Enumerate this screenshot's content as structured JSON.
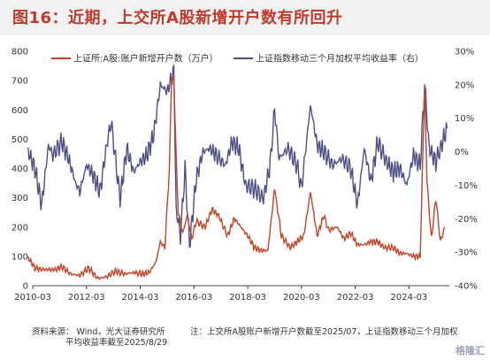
{
  "header": {
    "title": "图16：近期，上交所A股新增开户数有所回升"
  },
  "footer": {
    "source_line1": "资料来源： Wind，光大证券研究所",
    "source_line2": "平均收益率截至2025/8/29",
    "note": "注：上交所A股账户新增开户数截至2025/07，上证指数移动三个月加权"
  },
  "watermark": "格隆汇",
  "colors": {
    "accounts": "#c0452a",
    "index": "#4f4e86",
    "axis": "#333333",
    "title": "#c0392b"
  },
  "chart_data": {
    "type": "line",
    "x_ticks": [
      "2010-03",
      "2012-03",
      "2014-03",
      "2016-03",
      "2018-03",
      "2020-03",
      "2022-03",
      "2024-03"
    ],
    "y_left": {
      "lim": [
        0,
        800
      ],
      "ticks": [
        "0",
        "100",
        "200",
        "300",
        "400",
        "500",
        "600",
        "700",
        "800"
      ]
    },
    "y_right": {
      "lim": [
        -40,
        30
      ],
      "ticks": [
        "-40%",
        "-30%",
        "-20%",
        "-10%",
        "0%",
        "10%",
        "20%",
        "30%"
      ]
    },
    "series": [
      {
        "name": "上证所:A股:账户新增开户数（万户）",
        "axis": "left",
        "points": [
          [
            "2010-01",
            95
          ],
          [
            "2010-04",
            60
          ],
          [
            "2010-08",
            55
          ],
          [
            "2011-01",
            55
          ],
          [
            "2011-04",
            65
          ],
          [
            "2011-08",
            40
          ],
          [
            "2011-12",
            35
          ],
          [
            "2012-04",
            60
          ],
          [
            "2012-08",
            25
          ],
          [
            "2012-12",
            30
          ],
          [
            "2013-04",
            50
          ],
          [
            "2013-08",
            40
          ],
          [
            "2013-12",
            45
          ],
          [
            "2014-04",
            40
          ],
          [
            "2014-07",
            45
          ],
          [
            "2014-10",
            80
          ],
          [
            "2014-12",
            150
          ],
          [
            "2015-02",
            130
          ],
          [
            "2015-04",
            400
          ],
          [
            "2015-05",
            700
          ],
          [
            "2015-06",
            710
          ],
          [
            "2015-07",
            450
          ],
          [
            "2015-08",
            250
          ],
          [
            "2015-10",
            180
          ],
          [
            "2015-12",
            240
          ],
          [
            "2016-02",
            160
          ],
          [
            "2016-04",
            220
          ],
          [
            "2016-08",
            200
          ],
          [
            "2016-11",
            260
          ],
          [
            "2017-02",
            240
          ],
          [
            "2017-06",
            170
          ],
          [
            "2017-09",
            230
          ],
          [
            "2017-12",
            200
          ],
          [
            "2018-03",
            170
          ],
          [
            "2018-06",
            130
          ],
          [
            "2018-09",
            120
          ],
          [
            "2018-12",
            120
          ],
          [
            "2019-03",
            330
          ],
          [
            "2019-04",
            280
          ],
          [
            "2019-06",
            170
          ],
          [
            "2019-10",
            130
          ],
          [
            "2020-01",
            150
          ],
          [
            "2020-04",
            170
          ],
          [
            "2020-07",
            320
          ],
          [
            "2020-10",
            170
          ],
          [
            "2021-01",
            240
          ],
          [
            "2021-03",
            190
          ],
          [
            "2021-07",
            200
          ],
          [
            "2021-10",
            160
          ],
          [
            "2022-01",
            180
          ],
          [
            "2022-04",
            140
          ],
          [
            "2022-07",
            140
          ],
          [
            "2022-10",
            150
          ],
          [
            "2023-01",
            150
          ],
          [
            "2023-04",
            130
          ],
          [
            "2023-08",
            130
          ],
          [
            "2023-11",
            110
          ],
          [
            "2024-02",
            110
          ],
          [
            "2024-05",
            100
          ],
          [
            "2024-08",
            100
          ],
          [
            "2024-10",
            690
          ],
          [
            "2024-11",
            360
          ],
          [
            "2025-01",
            160
          ],
          [
            "2025-03",
            300
          ],
          [
            "2025-05",
            150
          ],
          [
            "2025-07",
            200
          ]
        ]
      },
      {
        "name": "上证指数移动三个月加权平均收益率（右）",
        "axis": "right",
        "points": [
          [
            "2010-01",
            0
          ],
          [
            "2010-04",
            -5
          ],
          [
            "2010-07",
            -16
          ],
          [
            "2010-10",
            2
          ],
          [
            "2010-12",
            -1
          ],
          [
            "2011-04",
            3
          ],
          [
            "2011-07",
            -2
          ],
          [
            "2011-10",
            -9
          ],
          [
            "2011-12",
            -12
          ],
          [
            "2012-03",
            -4
          ],
          [
            "2012-06",
            -7
          ],
          [
            "2012-09",
            -12
          ],
          [
            "2012-12",
            2
          ],
          [
            "2013-02",
            9
          ],
          [
            "2013-06",
            -14
          ],
          [
            "2013-09",
            1
          ],
          [
            "2013-12",
            -6
          ],
          [
            "2014-03",
            -3
          ],
          [
            "2014-06",
            -1
          ],
          [
            "2014-09",
            5
          ],
          [
            "2014-12",
            20
          ],
          [
            "2015-03",
            18
          ],
          [
            "2015-06",
            24
          ],
          [
            "2015-07",
            -17
          ],
          [
            "2015-09",
            -25
          ],
          [
            "2015-11",
            -5
          ],
          [
            "2016-01",
            -28
          ],
          [
            "2016-04",
            -8
          ],
          [
            "2016-07",
            0
          ],
          [
            "2016-10",
            1
          ],
          [
            "2017-01",
            -1
          ],
          [
            "2017-05",
            -4
          ],
          [
            "2017-08",
            3
          ],
          [
            "2017-11",
            1
          ],
          [
            "2018-02",
            -10
          ],
          [
            "2018-06",
            -11
          ],
          [
            "2018-10",
            -14
          ],
          [
            "2019-01",
            -4
          ],
          [
            "2019-03",
            13
          ],
          [
            "2019-05",
            -2
          ],
          [
            "2019-09",
            1
          ],
          [
            "2020-01",
            -4
          ],
          [
            "2020-03",
            -11
          ],
          [
            "2020-07",
            14
          ],
          [
            "2020-10",
            2
          ],
          [
            "2021-01",
            0
          ],
          [
            "2021-05",
            -4
          ],
          [
            "2021-09",
            -2
          ],
          [
            "2022-01",
            -5
          ],
          [
            "2022-04",
            -16
          ],
          [
            "2022-07",
            1
          ],
          [
            "2022-10",
            -9
          ],
          [
            "2023-01",
            3
          ],
          [
            "2023-05",
            -3
          ],
          [
            "2023-08",
            -6
          ],
          [
            "2023-11",
            -5
          ],
          [
            "2024-02",
            -10
          ],
          [
            "2024-05",
            -1
          ],
          [
            "2024-08",
            -4
          ],
          [
            "2024-10",
            20
          ],
          [
            "2024-12",
            1
          ],
          [
            "2025-03",
            -3
          ],
          [
            "2025-05",
            1
          ],
          [
            "2025-08",
            7
          ]
        ]
      }
    ]
  }
}
